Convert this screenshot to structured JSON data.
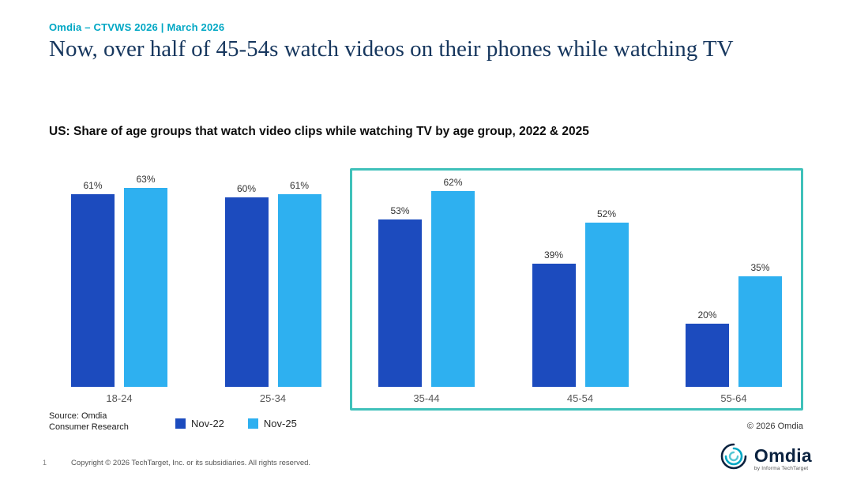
{
  "colors": {
    "accent_teal": "#00a7c4",
    "highlight_box_teal": "#3fc1ba",
    "title_navy": "#17375e",
    "series_nov22_blue": "#1c4bbe",
    "series_nov25_light_blue": "#2eb0f0"
  },
  "header": {
    "eyebrow": "Omdia – CTVWS 2026 | March 2026",
    "title": "Now, over half of 45-54s watch videos on their phones while watching TV"
  },
  "chart_data": {
    "type": "bar",
    "title": "US: Share of age groups that watch video clips while watching TV by age group, 2022 & 2025",
    "categories": [
      "18-24",
      "25-34",
      "35-44",
      "45-54",
      "55-64"
    ],
    "series": [
      {
        "name": "Nov-22",
        "color": "#1c4bbe",
        "values": [
          61,
          60,
          53,
          39,
          20
        ]
      },
      {
        "name": "Nov-25",
        "color": "#2eb0f0",
        "values": [
          63,
          61,
          62,
          52,
          35
        ]
      }
    ],
    "value_suffix": "%",
    "xlabel": "",
    "ylabel": "",
    "ylim": [
      0,
      70
    ],
    "grid": false,
    "legend_position": "bottom",
    "data_labels": true,
    "highlight_categories": [
      "35-44",
      "45-54",
      "55-64"
    ]
  },
  "notes": {
    "source_line1": "Source: Omdia",
    "source_line2": "Consumer Research",
    "chart_copyright": "© 2026 Omdia"
  },
  "footer": {
    "page_number": "1",
    "copyright": "Copyright © 2026 TechTarget, Inc. or its subsidiaries. All rights reserved.",
    "logo_word": "Omdia",
    "logo_sub": "by Informa TechTarget"
  }
}
